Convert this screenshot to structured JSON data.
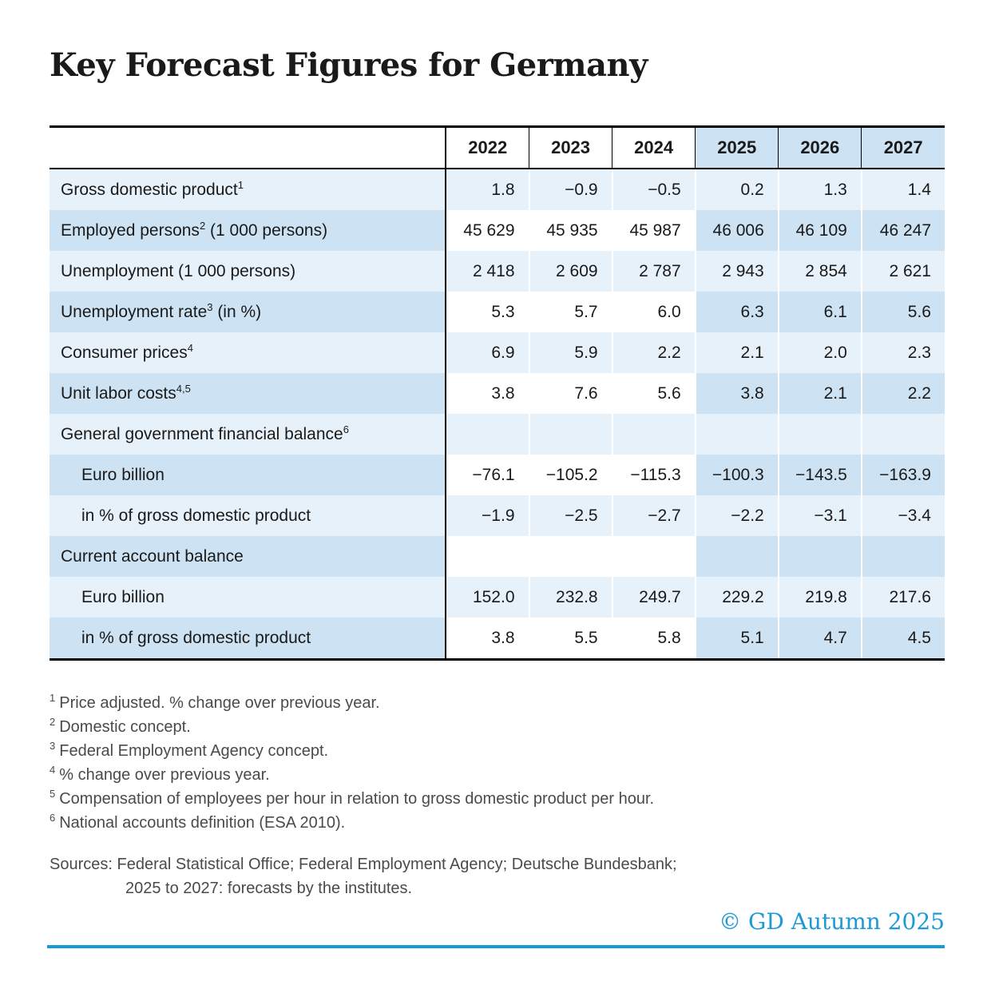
{
  "accent_color": "#149bd8",
  "row_shade_light": "#e6f1fa",
  "row_shade_dark": "#cde3f3",
  "chart_data": {
    "type": "table",
    "title": "Key Forecast Figures for Germany",
    "columns": [
      "2022",
      "2023",
      "2024",
      "2025",
      "2026",
      "2027"
    ],
    "forecast_columns": [
      "2025",
      "2026",
      "2027"
    ],
    "rows": [
      {
        "label": "Gross domestic product",
        "sup": "1",
        "suffix": "",
        "indent": false,
        "shade": "light",
        "values": [
          "1.8",
          "−0.9",
          "−0.5",
          "0.2",
          "1.3",
          "1.4"
        ]
      },
      {
        "label": "Employed persons",
        "sup": "2",
        "suffix": " (1 000 persons)",
        "indent": false,
        "shade": "dark",
        "values": [
          "45 629",
          "45 935",
          "45 987",
          "46 006",
          "46 109",
          "46 247"
        ]
      },
      {
        "label": "Unemployment (1 000 persons)",
        "sup": "",
        "suffix": "",
        "indent": false,
        "shade": "light",
        "values": [
          "2 418",
          "2 609",
          "2 787",
          "2 943",
          "2 854",
          "2 621"
        ]
      },
      {
        "label": "Unemployment rate",
        "sup": "3",
        "suffix": " (in %)",
        "indent": false,
        "shade": "dark",
        "values": [
          "5.3",
          "5.7",
          "6.0",
          "6.3",
          "6.1",
          "5.6"
        ]
      },
      {
        "label": "Consumer prices",
        "sup": "4",
        "suffix": "",
        "indent": false,
        "shade": "light",
        "values": [
          "6.9",
          "5.9",
          "2.2",
          "2.1",
          "2.0",
          "2.3"
        ]
      },
      {
        "label": "Unit labor costs",
        "sup": "4,5",
        "suffix": "",
        "indent": false,
        "shade": "dark",
        "values": [
          "3.8",
          "7.6",
          "5.6",
          "3.8",
          "2.1",
          "2.2"
        ]
      },
      {
        "label": "General government financial balance",
        "sup": "6",
        "suffix": "",
        "indent": false,
        "shade": "light",
        "values": [
          "",
          "",
          "",
          "",
          "",
          ""
        ]
      },
      {
        "label": "Euro billion",
        "sup": "",
        "suffix": "",
        "indent": true,
        "shade": "dark",
        "values": [
          "−76.1",
          "−105.2",
          "−115.3",
          "−100.3",
          "−143.5",
          "−163.9"
        ]
      },
      {
        "label": "in % of gross domestic product",
        "sup": "",
        "suffix": "",
        "indent": true,
        "shade": "light",
        "values": [
          "−1.9",
          "−2.5",
          "−2.7",
          "−2.2",
          "−3.1",
          "−3.4"
        ]
      },
      {
        "label": "Current account balance",
        "sup": "",
        "suffix": "",
        "indent": false,
        "shade": "dark",
        "values": [
          "",
          "",
          "",
          "",
          "",
          ""
        ]
      },
      {
        "label": "Euro billion",
        "sup": "",
        "suffix": "",
        "indent": true,
        "shade": "light",
        "values": [
          "152.0",
          "232.8",
          "249.7",
          "229.2",
          "219.8",
          "217.6"
        ]
      },
      {
        "label": "in % of gross domestic product",
        "sup": "",
        "suffix": "",
        "indent": true,
        "shade": "dark",
        "values": [
          "3.8",
          "5.5",
          "5.8",
          "5.1",
          "4.7",
          "4.5"
        ]
      }
    ],
    "footnotes": [
      {
        "marker": "1",
        "text": "Price adjusted. % change over previous year."
      },
      {
        "marker": "2",
        "text": "Domestic concept."
      },
      {
        "marker": "3",
        "text": "Federal Employment Agency concept."
      },
      {
        "marker": "4",
        "text": "% change over previous year."
      },
      {
        "marker": "5",
        "text": "Compensation of employees per hour in relation to gross domestic product per hour."
      },
      {
        "marker": "6",
        "text": "National accounts definition (ESA 2010)."
      }
    ],
    "sources": {
      "line1": "Sources: Federal Statistical Office; Federal Employment Agency; Deutsche Bundesbank;",
      "line2": "2025 to 2027: forecasts by the institutes."
    },
    "copyright": "© GD Autumn 2025"
  }
}
